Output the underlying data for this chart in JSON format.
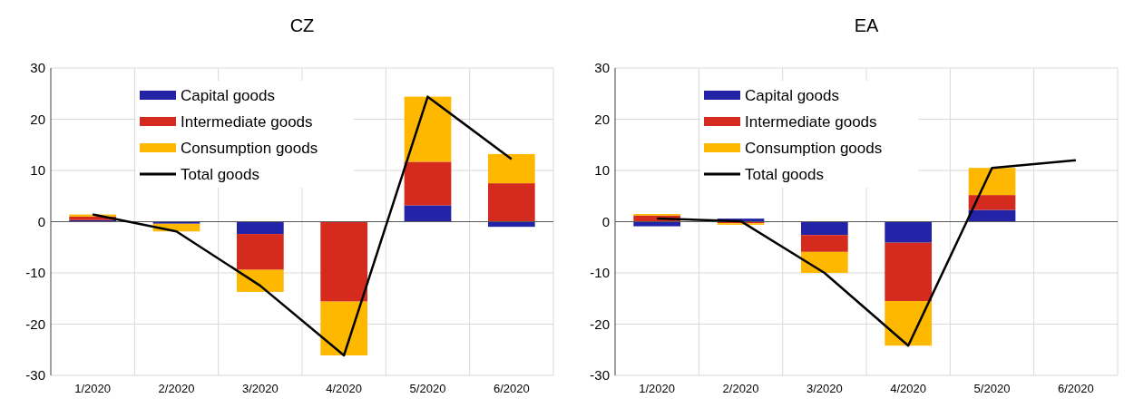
{
  "chart_data": [
    {
      "type": "bar",
      "title": "CZ",
      "categories": [
        "1/2020",
        "2/2020",
        "3/2020",
        "4/2020",
        "5/2020",
        "6/2020"
      ],
      "stacked": true,
      "ylim": [
        -30,
        30
      ],
      "yticks": [
        -30,
        -20,
        -10,
        0,
        10,
        20,
        30
      ],
      "grid": true,
      "legend": "top left",
      "series": [
        {
          "name": "Capital goods",
          "color": "#2323a8",
          "values": [
            0.3,
            -0.4,
            -2.4,
            0,
            3.2,
            -1.0
          ]
        },
        {
          "name": "Intermediate goods",
          "color": "#d52b1e",
          "values": [
            0.7,
            0,
            -7.0,
            -15.6,
            8.5,
            7.5
          ]
        },
        {
          "name": "Consumption goods",
          "color": "#ffb800",
          "values": [
            0.4,
            -1.5,
            -4.3,
            -10.5,
            12.7,
            5.7
          ]
        },
        {
          "name": "Total goods",
          "type": "line",
          "color": "#000000",
          "values": [
            1.4,
            -1.9,
            -12.5,
            -26.1,
            24.4,
            12.2
          ]
        }
      ]
    },
    {
      "type": "bar",
      "title": "EA",
      "categories": [
        "1/2020",
        "2/2020",
        "3/2020",
        "4/2020",
        "5/2020",
        "6/2020"
      ],
      "stacked": true,
      "ylim": [
        -30,
        30
      ],
      "yticks": [
        -30,
        -20,
        -10,
        0,
        10,
        20,
        30
      ],
      "grid": true,
      "legend": "top left",
      "series": [
        {
          "name": "Capital goods",
          "color": "#2323a8",
          "values": [
            -0.9,
            0.6,
            -2.6,
            -4.1,
            2.3,
            null
          ]
        },
        {
          "name": "Intermediate goods",
          "color": "#d52b1e",
          "values": [
            1.2,
            -0.3,
            -3.3,
            -11.4,
            2.9,
            null
          ]
        },
        {
          "name": "Consumption goods",
          "color": "#ffb800",
          "values": [
            0.3,
            -0.3,
            -4.1,
            -8.7,
            5.3,
            null
          ]
        },
        {
          "name": "Total goods",
          "type": "line",
          "color": "#000000",
          "values": [
            0.6,
            0.1,
            -10.0,
            -24.2,
            10.5,
            12.0
          ]
        }
      ]
    }
  ]
}
